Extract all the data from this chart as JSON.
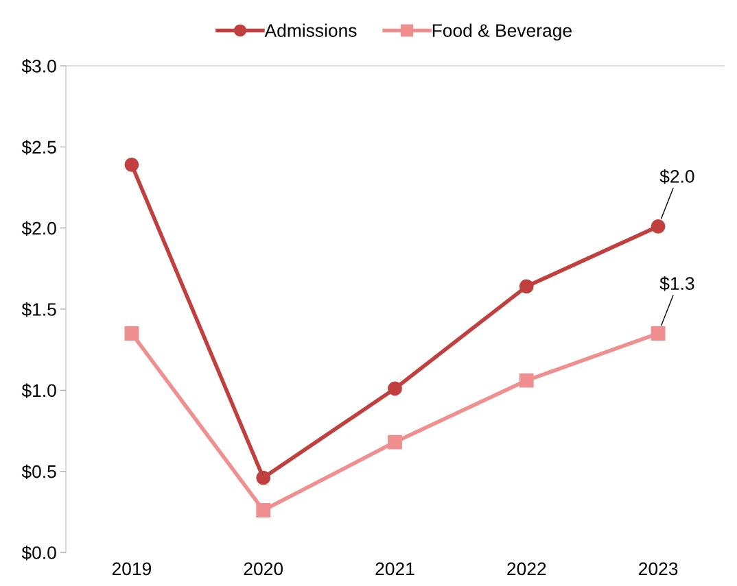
{
  "chart_data": {
    "type": "line",
    "categories": [
      "2019",
      "2020",
      "2021",
      "2022",
      "2023"
    ],
    "series": [
      {
        "name": "Admissions",
        "color": "#c0403f",
        "marker": "circle",
        "values": [
          2.39,
          0.46,
          1.01,
          1.64,
          2.01
        ]
      },
      {
        "name": "Food & Beverage",
        "color": "#ef8f8f",
        "marker": "square",
        "values": [
          1.35,
          0.26,
          0.68,
          1.06,
          1.35
        ]
      }
    ],
    "ylim": [
      0,
      3.0
    ],
    "yticks": [
      {
        "value": 0,
        "label": "$0.0"
      },
      {
        "value": 0.5,
        "label": "$0.5"
      },
      {
        "value": 1.0,
        "label": "$1.0"
      },
      {
        "value": 1.5,
        "label": "$1.5"
      },
      {
        "value": 2.0,
        "label": "$2.0"
      },
      {
        "value": 2.5,
        "label": "$2.5"
      },
      {
        "value": 3.0,
        "label": "$3.0"
      }
    ],
    "annotations": [
      {
        "text": "$2.0",
        "x": "2023",
        "y": 2.01
      },
      {
        "text": "$1.3",
        "x": "2023",
        "y": 1.35
      }
    ],
    "legend": "top",
    "grid": false
  }
}
